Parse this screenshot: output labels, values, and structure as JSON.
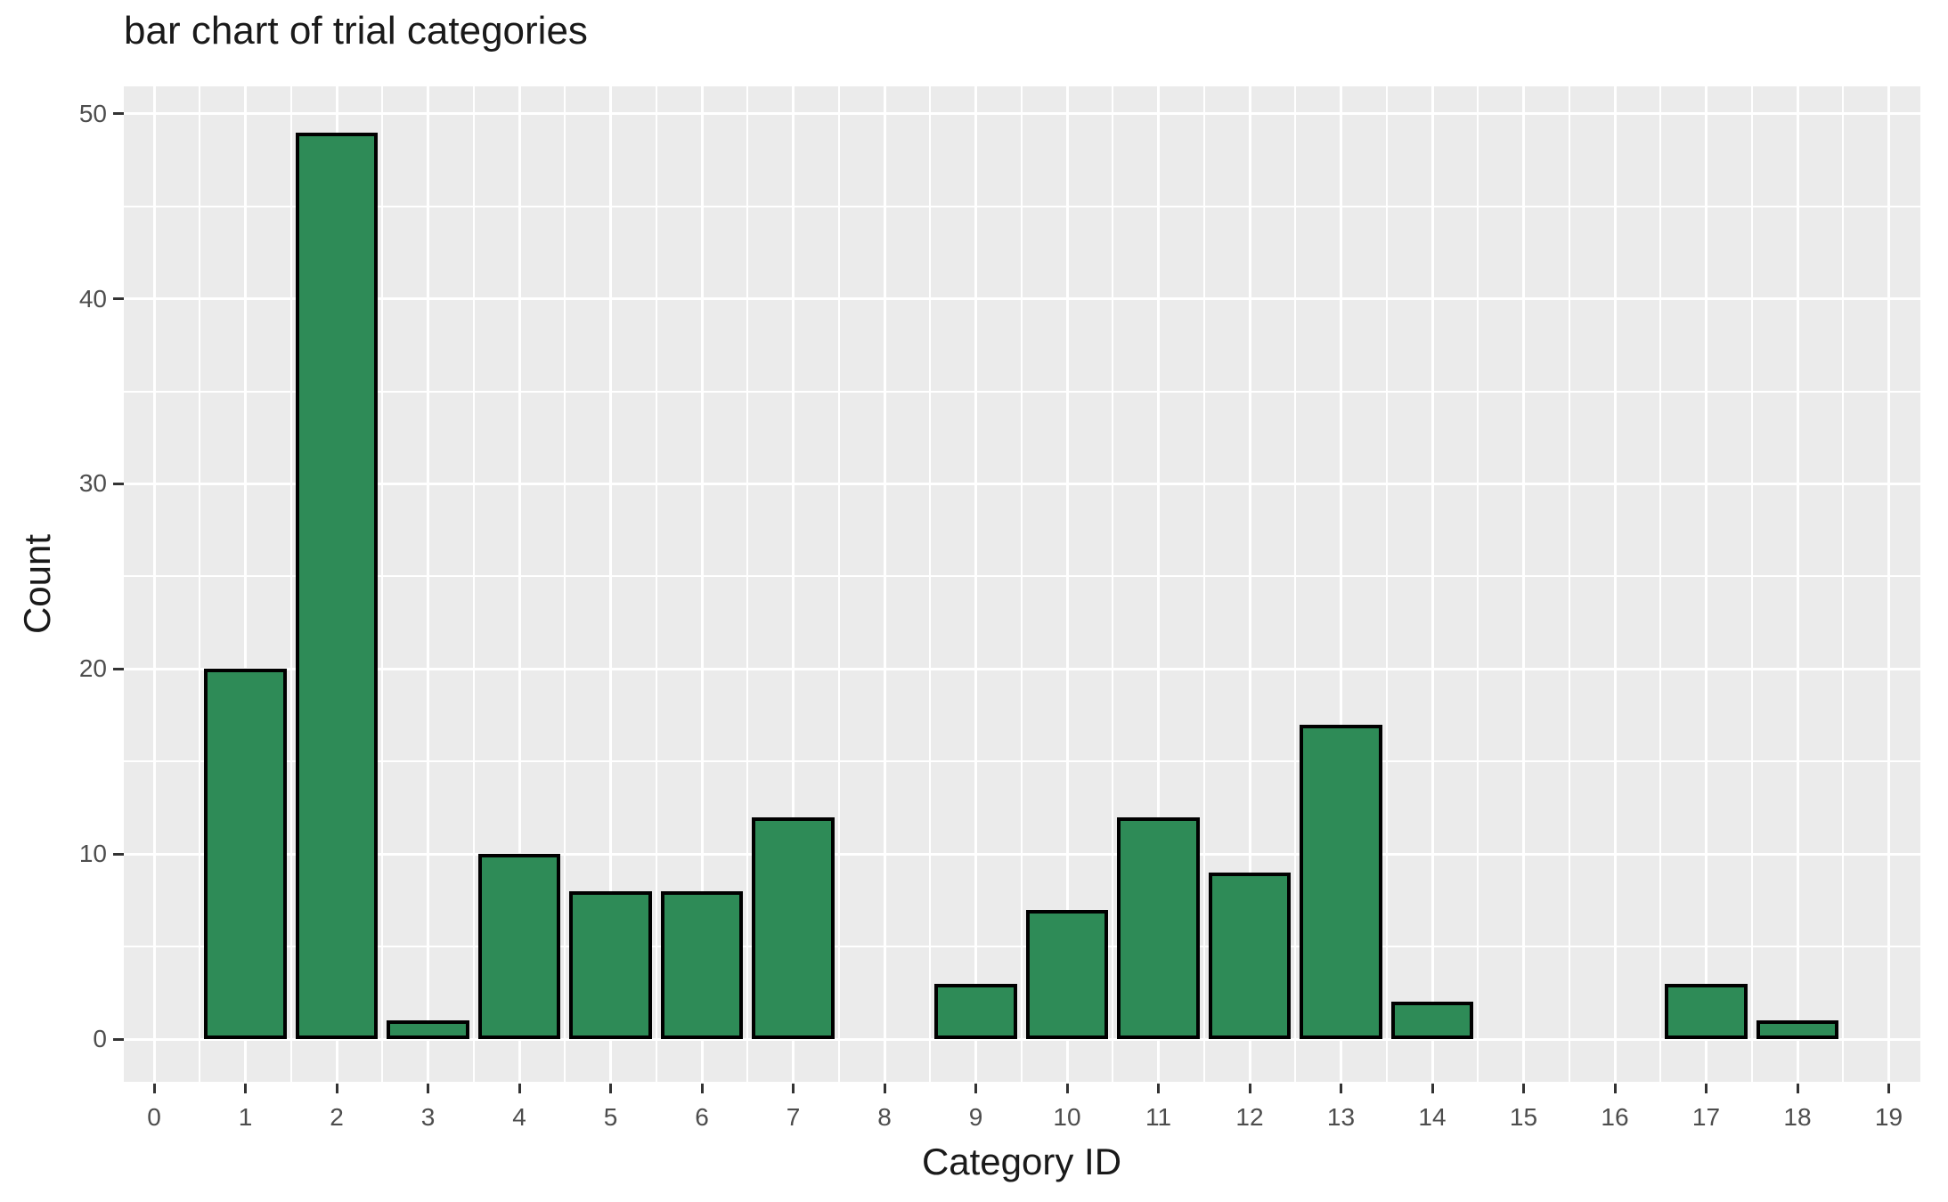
{
  "chart_data": {
    "type": "bar",
    "title": "bar chart of trial categories",
    "xlabel": "Category ID",
    "ylabel": "Count",
    "categories": [
      0,
      1,
      2,
      3,
      4,
      5,
      6,
      7,
      8,
      9,
      10,
      11,
      12,
      13,
      14,
      15,
      16,
      17,
      18,
      19
    ],
    "values": [
      0,
      20,
      49,
      1,
      10,
      8,
      8,
      12,
      0,
      3,
      7,
      12,
      9,
      17,
      2,
      0,
      0,
      3,
      1,
      0
    ],
    "x_ticks": [
      0,
      1,
      2,
      3,
      4,
      5,
      6,
      7,
      8,
      9,
      10,
      11,
      12,
      13,
      14,
      15,
      16,
      17,
      18,
      19
    ],
    "y_ticks": [
      0,
      10,
      20,
      30,
      40,
      50
    ],
    "y_minor_ticks": [
      5,
      15,
      25,
      35,
      45
    ],
    "xlim": [
      -0.345,
      19.345
    ],
    "ylim": [
      -2.31,
      51.45
    ],
    "bar_width": 0.9,
    "grid": true,
    "legend_position": "none",
    "colors": {
      "bar_fill": "#2E8B57",
      "bar_stroke": "#000000",
      "panel_background": "#EBEBEB",
      "gridline": "#FFFFFF",
      "tick_label": "#4D4D4D",
      "tick_mark": "#333333",
      "title_text": "#1A1A1A",
      "page_background": "#FFFFFF"
    }
  }
}
